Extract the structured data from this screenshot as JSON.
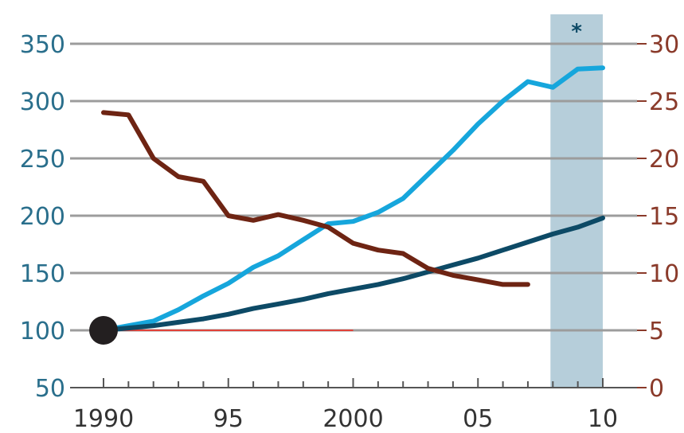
{
  "chart_data": {
    "type": "line",
    "x_ticks": [
      "1990",
      "95",
      "2000",
      "05",
      "10"
    ],
    "x_tick_values": [
      1990,
      1995,
      2000,
      2005,
      2010
    ],
    "xlim": [
      1990,
      2010
    ],
    "y_left": {
      "ticks": [
        50,
        100,
        150,
        200,
        250,
        300,
        350
      ],
      "lim": [
        50,
        350
      ]
    },
    "y_right": {
      "ticks": [
        0,
        5,
        10,
        15,
        20,
        25,
        30
      ],
      "lim": [
        0,
        30
      ]
    },
    "grid": true,
    "shaded_period": {
      "from": 2008,
      "to": 2010,
      "marker": "*"
    },
    "baseline": {
      "axis": "left",
      "value": 100,
      "from": 1990,
      "to": 2000
    },
    "start_marker": {
      "x": 1990,
      "y": 100
    },
    "series": [
      {
        "axis": "left",
        "color": "#16a6dc",
        "x": [
          1990,
          1991,
          1992,
          1993,
          1994,
          1995,
          1996,
          1997,
          1998,
          1999,
          2000,
          2001,
          2002,
          2003,
          2004,
          2005,
          2006,
          2007,
          2008,
          2009,
          2010
        ],
        "values": [
          100,
          104,
          108,
          118,
          130,
          141,
          155,
          165,
          179,
          193,
          195,
          203,
          215,
          236,
          257,
          280,
          300,
          317,
          312,
          328,
          329
        ]
      },
      {
        "axis": "left",
        "color": "#0d4a66",
        "x": [
          1990,
          1991,
          1992,
          1993,
          1994,
          1995,
          1996,
          1997,
          1998,
          1999,
          2000,
          2001,
          2002,
          2003,
          2004,
          2005,
          2006,
          2007,
          2008,
          2009,
          2010
        ],
        "values": [
          100,
          102,
          104,
          107,
          110,
          114,
          119,
          123,
          127,
          132,
          136,
          140,
          145,
          151,
          157,
          163,
          170,
          177,
          184,
          190,
          198
        ]
      },
      {
        "axis": "right",
        "color": "#6e2413",
        "x": [
          1990,
          1991,
          1992,
          1993,
          1994,
          1995,
          1996,
          1997,
          1998,
          1999,
          2000,
          2001,
          2002,
          2003,
          2004,
          2005,
          2006,
          2007
        ],
        "values": [
          24,
          23.8,
          20,
          18.4,
          18,
          15,
          14.6,
          15.1,
          14.6,
          14,
          12.6,
          12,
          11.7,
          10.4,
          9.8,
          9.4,
          9,
          9
        ]
      }
    ]
  }
}
